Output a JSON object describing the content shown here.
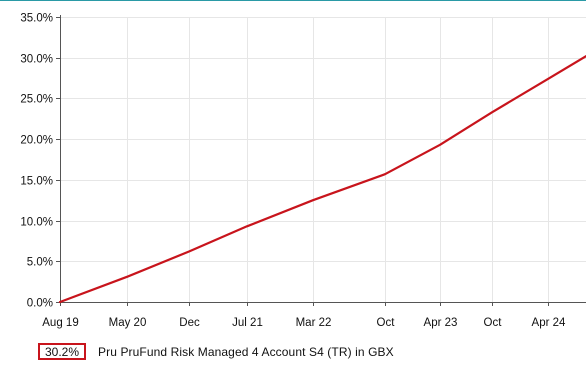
{
  "chart_data": {
    "type": "line",
    "title": "",
    "xlabel": "",
    "ylabel": "",
    "x_ticks": [
      "Aug 19",
      "May 20",
      "Dec",
      "Jul 21",
      "Mar 22",
      "Oct",
      "Apr 23",
      "Oct",
      "Apr 24"
    ],
    "y_ticks": [
      "0.0%",
      "5.0%",
      "10.0%",
      "15.0%",
      "20.0%",
      "25.0%",
      "30.0%",
      "35.0%"
    ],
    "ylim": [
      0,
      35
    ],
    "y_unit": "%",
    "grid": true,
    "legend_position": "bottom-left",
    "series": [
      {
        "name": "Pru PruFund Risk Managed 4 Account S4 (TR) in GBX",
        "color": "#c8141c",
        "last_value_label": "30.2%",
        "x": [
          "Aug 19",
          "May 20",
          "Dec",
          "Jul 21",
          "Mar 22",
          "Oct",
          "Apr 23",
          "Oct",
          "Apr 24"
        ],
        "values": [
          0.0,
          3.1,
          6.2,
          9.3,
          12.5,
          15.7,
          19.3,
          23.3,
          27.4
        ]
      }
    ]
  },
  "legend": {
    "value": "30.2%",
    "label": "Pru PruFund Risk Managed 4 Account S4 (TR) in GBX"
  },
  "colors": {
    "line": "#c8141c",
    "grid": "#e6e6e6",
    "axis": "#555555",
    "top_rule": "#2a9aa6"
  }
}
